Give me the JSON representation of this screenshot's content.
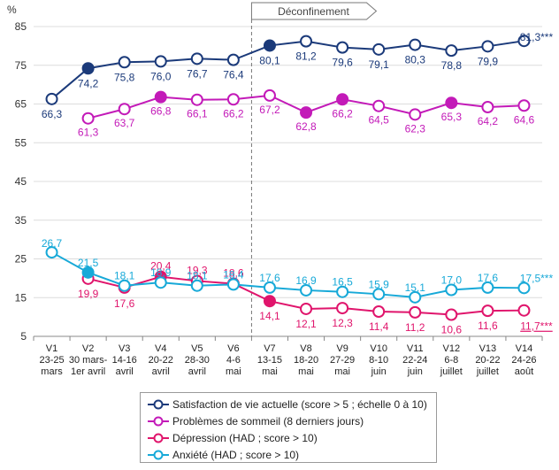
{
  "chart_data": {
    "type": "line",
    "ylabel": "%",
    "ylim": [
      5,
      85
    ],
    "yticks": [
      5,
      15,
      25,
      35,
      45,
      55,
      65,
      75,
      85
    ],
    "annotation": "Déconfinement",
    "categories": [
      [
        "V1",
        "23-25",
        "mars"
      ],
      [
        "V2",
        "30 mars-",
        "1er avril"
      ],
      [
        "V3",
        "14-16",
        "avril"
      ],
      [
        "V4",
        "20-22",
        "avril"
      ],
      [
        "V5",
        "28-30",
        "avril"
      ],
      [
        "V6",
        "4-6",
        "mai"
      ],
      [
        "V7",
        "13-15",
        "mai"
      ],
      [
        "V8",
        "18-20",
        "mai"
      ],
      [
        "V9",
        "27-29",
        "mai"
      ],
      [
        "V10",
        "8-10",
        "juin"
      ],
      [
        "V11",
        "22-24",
        "juin"
      ],
      [
        "V12",
        "6-8",
        "juillet"
      ],
      [
        "V13",
        "20-22",
        "juillet"
      ],
      [
        "V14",
        "24-26",
        "août"
      ]
    ],
    "series": [
      {
        "name": "Satisfaction de vie actuelle (score > 5 ; échelle 0 à 10)",
        "color": "#1b3a7a",
        "values": [
          66.3,
          74.2,
          75.8,
          76.0,
          76.7,
          76.4,
          80.1,
          81.2,
          79.6,
          79.1,
          80.3,
          78.8,
          79.9,
          81.3
        ],
        "labels": [
          "66,3",
          "74,2",
          "75,8",
          "76,0",
          "76,7",
          "76,4",
          "80,1",
          "81,2",
          "79,6",
          "79,1",
          "80,3",
          "78,8",
          "79,9",
          "81,3***"
        ],
        "filled": [
          1,
          6
        ],
        "label_pos": "below"
      },
      {
        "name": "Problèmes de sommeil (8 derniers jours)",
        "color": "#c31ab8",
        "values": [
          null,
          61.3,
          63.7,
          66.8,
          66.1,
          66.2,
          67.2,
          62.8,
          66.2,
          64.5,
          62.3,
          65.3,
          64.2,
          64.6
        ],
        "labels": [
          "",
          "61,3",
          "63,7",
          "66,8",
          "66,1",
          "66,2",
          "67,2",
          "62,8",
          "66,2",
          "64,5",
          "62,3",
          "65,3",
          "64,2",
          "64,6"
        ],
        "filled": [
          3,
          7,
          8,
          11
        ],
        "label_pos": "below"
      },
      {
        "name": "Dépression (HAD ; score > 10)",
        "color": "#e0156c",
        "values": [
          null,
          19.9,
          17.6,
          20.4,
          19.3,
          18.6,
          14.1,
          12.1,
          12.3,
          11.4,
          11.2,
          10.6,
          11.6,
          11.7
        ],
        "labels": [
          "",
          "19,9",
          "17,6",
          "20,4",
          "19,3",
          "18,6",
          "14,1",
          "12,1",
          "12,3",
          "11,4",
          "11,2",
          "10,6",
          "11,6",
          "11,7***"
        ],
        "filled": [
          3,
          6
        ],
        "label_pos": "mixed"
      },
      {
        "name": "Anxiété (HAD ; score > 10)",
        "color": "#17a9d8",
        "values": [
          26.7,
          21.5,
          18.1,
          18.9,
          18.1,
          18.4,
          17.6,
          16.9,
          16.5,
          15.9,
          15.1,
          17.0,
          17.6,
          17.5
        ],
        "labels": [
          "26,7",
          "21,5",
          "18,1",
          "18,9",
          "18,1",
          "18,4",
          "17,6",
          "16,9",
          "16,5",
          "15,9",
          "15,1",
          "17,0",
          "17,6",
          "17,5***"
        ],
        "filled": [
          1
        ],
        "label_pos": "mixed"
      }
    ]
  }
}
